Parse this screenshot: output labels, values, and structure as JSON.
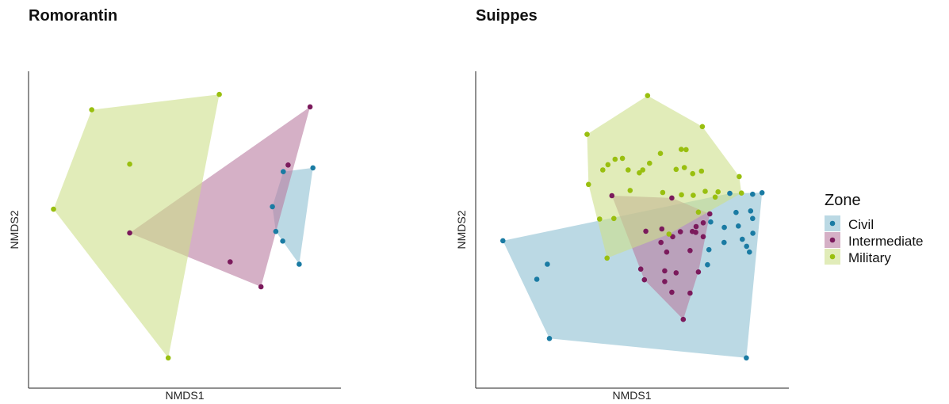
{
  "chart_data": [
    {
      "type": "scatter",
      "title": "Romorantin",
      "xlabel": "NMDS1",
      "ylabel": "NMDS2",
      "xlim": [
        0,
        100
      ],
      "ylim": [
        0,
        100
      ],
      "grid": false,
      "hulls": true,
      "series": [
        {
          "name": "Civil",
          "color": "#1a7ba3",
          "fill": "#8ec0d2",
          "points": [
            [
              84.8,
              69.4
            ],
            [
              95.2,
              70.7
            ],
            [
              81.0,
              57.3
            ],
            [
              82.2,
              48.7
            ],
            [
              84.6,
              45.4
            ],
            [
              90.4,
              37.4
            ]
          ]
        },
        {
          "name": "Intermediate",
          "color": "#7b1a5c",
          "fill": "#b97ba0",
          "points": [
            [
              94.2,
              91.8
            ],
            [
              86.5,
              71.7
            ],
            [
              31.0,
              48.2
            ],
            [
              66.2,
              38.2
            ],
            [
              77.0,
              29.6
            ]
          ]
        },
        {
          "name": "Military",
          "color": "#99bf0f",
          "fill": "#cde08a",
          "points": [
            [
              62.4,
              96.1
            ],
            [
              17.7,
              90.8
            ],
            [
              31.0,
              72.0
            ],
            [
              4.3,
              56.4
            ],
            [
              44.5,
              5.0
            ]
          ]
        }
      ]
    },
    {
      "type": "scatter",
      "title": "Suippes",
      "xlabel": "NMDS1",
      "ylabel": "NMDS2",
      "xlim": [
        0,
        100
      ],
      "ylim": [
        0,
        100
      ],
      "grid": false,
      "hulls": true,
      "series": [
        {
          "name": "Civil",
          "color": "#1a7ba3",
          "fill": "#8ec0d2",
          "points": [
            [
              95.6,
              62.1
            ],
            [
              92.3,
              61.6
            ],
            [
              84.3,
              61.9
            ],
            [
              86.5,
              55.3
            ],
            [
              91.6,
              55.8
            ],
            [
              87.3,
              50.6
            ],
            [
              92.3,
              53.2
            ],
            [
              82.4,
              50.1
            ],
            [
              92.4,
              48.1
            ],
            [
              77.6,
              52.0
            ],
            [
              88.7,
              46.0
            ],
            [
              82.3,
              44.9
            ],
            [
              90.2,
              43.6
            ],
            [
              91.2,
              41.6
            ],
            [
              77.0,
              42.4
            ],
            [
              76.5,
              37.2
            ],
            [
              4.8,
              45.5
            ],
            [
              20.4,
              37.4
            ],
            [
              16.7,
              32.2
            ],
            [
              21.1,
              11.7
            ],
            [
              90.1,
              5.0
            ]
          ]
        },
        {
          "name": "Intermediate",
          "color": "#7b1a5c",
          "fill": "#b97ba0",
          "points": [
            [
              43.0,
              61.1
            ],
            [
              64.0,
              60.3
            ],
            [
              77.3,
              54.8
            ],
            [
              75.0,
              51.7
            ],
            [
              72.5,
              50.4
            ],
            [
              71.2,
              48.7
            ],
            [
              72.4,
              48.4
            ],
            [
              75.0,
              46.9
            ],
            [
              54.9,
              48.8
            ],
            [
              60.5,
              49.6
            ],
            [
              67.0,
              48.6
            ],
            [
              64.3,
              46.9
            ],
            [
              60.2,
              44.9
            ],
            [
              62.2,
              41.6
            ],
            [
              70.4,
              42.1
            ],
            [
              61.5,
              35.1
            ],
            [
              53.1,
              35.7
            ],
            [
              65.5,
              34.4
            ],
            [
              61.5,
              31.4
            ],
            [
              73.3,
              34.7
            ],
            [
              64.0,
              27.7
            ],
            [
              70.4,
              27.4
            ],
            [
              54.4,
              32.0
            ],
            [
              68.0,
              18.3
            ]
          ]
        },
        {
          "name": "Military",
          "color": "#99bf0f",
          "fill": "#cde08a",
          "points": [
            [
              55.5,
              95.7
            ],
            [
              74.7,
              85.0
            ],
            [
              34.3,
              82.3
            ],
            [
              67.3,
              77.1
            ],
            [
              69.0,
              77.0
            ],
            [
              60.0,
              75.7
            ],
            [
              44.1,
              73.7
            ],
            [
              41.6,
              71.8
            ],
            [
              46.7,
              74.0
            ],
            [
              39.8,
              70.0
            ],
            [
              48.7,
              70.0
            ],
            [
              56.2,
              72.3
            ],
            [
              53.8,
              70.0
            ],
            [
              65.5,
              70.2
            ],
            [
              68.4,
              70.8
            ],
            [
              74.4,
              69.6
            ],
            [
              71.3,
              68.7
            ],
            [
              52.6,
              69.0
            ],
            [
              34.8,
              65.0
            ],
            [
              87.6,
              67.7
            ],
            [
              49.4,
              62.9
            ],
            [
              60.8,
              62.2
            ],
            [
              67.4,
              61.4
            ],
            [
              71.5,
              61.2
            ],
            [
              75.7,
              62.6
            ],
            [
              80.2,
              62.4
            ],
            [
              88.4,
              62.0
            ],
            [
              79.2,
              60.6
            ],
            [
              73.3,
              55.4
            ],
            [
              38.7,
              53.0
            ],
            [
              43.7,
              53.2
            ],
            [
              63.0,
              47.8
            ],
            [
              41.3,
              39.5
            ]
          ]
        }
      ]
    }
  ],
  "legend": {
    "title": "Zone",
    "placement": "right",
    "items": [
      "Civil",
      "Intermediate",
      "Military"
    ]
  }
}
